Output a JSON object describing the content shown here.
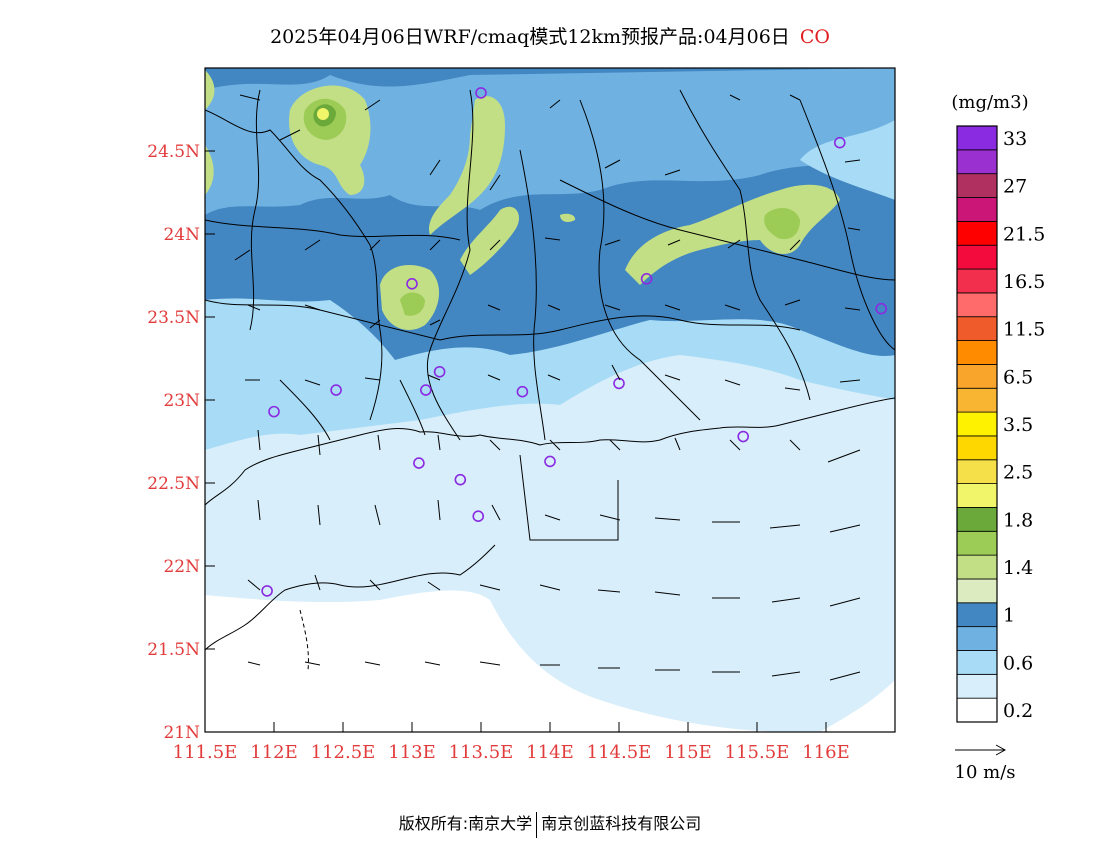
{
  "title": {
    "main": "2025年04月06日WRF/cmaq模式12km预报产品:04月06日",
    "pollutant": "CO"
  },
  "map": {
    "lon_range": [
      111.5,
      116.5
    ],
    "lat_range": [
      21.0,
      25.0
    ],
    "y_ticks": [
      {
        "lat": 24.5,
        "label": "24.5N"
      },
      {
        "lat": 24.0,
        "label": "24N"
      },
      {
        "lat": 23.5,
        "label": "23.5N"
      },
      {
        "lat": 23.0,
        "label": "23N"
      },
      {
        "lat": 22.5,
        "label": "22.5N"
      },
      {
        "lat": 22.0,
        "label": "22N"
      },
      {
        "lat": 21.5,
        "label": "21.5N"
      },
      {
        "lat": 21.0,
        "label": "21N"
      }
    ],
    "x_ticks": [
      {
        "lon": 111.5,
        "label": "111.5E"
      },
      {
        "lon": 112.0,
        "label": "112E"
      },
      {
        "lon": 112.5,
        "label": "112.5E"
      },
      {
        "lon": 113.0,
        "label": "113E"
      },
      {
        "lon": 113.5,
        "label": "113.5E"
      },
      {
        "lon": 114.0,
        "label": "114E"
      },
      {
        "lon": 114.5,
        "label": "114.5E"
      },
      {
        "lon": 115.0,
        "label": "115E"
      },
      {
        "lon": 115.5,
        "label": "115.5E"
      },
      {
        "lon": 116.0,
        "label": "116E"
      }
    ],
    "stations": [
      {
        "lon": 113.5,
        "lat": 24.85
      },
      {
        "lon": 116.1,
        "lat": 24.55
      },
      {
        "lon": 113.0,
        "lat": 23.7
      },
      {
        "lon": 114.7,
        "lat": 23.73
      },
      {
        "lon": 116.4,
        "lat": 23.55
      },
      {
        "lon": 113.2,
        "lat": 23.17
      },
      {
        "lon": 112.45,
        "lat": 23.06
      },
      {
        "lon": 113.1,
        "lat": 23.06
      },
      {
        "lon": 113.8,
        "lat": 23.05
      },
      {
        "lon": 114.5,
        "lat": 23.1
      },
      {
        "lon": 112.0,
        "lat": 22.93
      },
      {
        "lon": 115.4,
        "lat": 22.78
      },
      {
        "lon": 113.05,
        "lat": 22.62
      },
      {
        "lon": 113.35,
        "lat": 22.52
      },
      {
        "lon": 114.0,
        "lat": 22.63
      },
      {
        "lon": 113.48,
        "lat": 22.3
      },
      {
        "lon": 111.95,
        "lat": 21.85
      }
    ],
    "land_outline_color": "#000000",
    "station_color": "#8a2be2"
  },
  "colorbar": {
    "unit": "(mg/m3)",
    "levels": [
      {
        "color": "#ffffff",
        "label": "0.2"
      },
      {
        "color": "#d8eefa",
        "label": ""
      },
      {
        "color": "#a8dcf6",
        "label": "0.6"
      },
      {
        "color": "#6fb2e2",
        "label": ""
      },
      {
        "color": "#4387c2",
        "label": "1"
      },
      {
        "color": "#dcebc0",
        "label": ""
      },
      {
        "color": "#c3df85",
        "label": "1.4"
      },
      {
        "color": "#9ccc55",
        "label": ""
      },
      {
        "color": "#6aa93a",
        "label": "1.8"
      },
      {
        "color": "#f0f56a",
        "label": ""
      },
      {
        "color": "#f6e04a",
        "label": "2.5"
      },
      {
        "color": "#ffd700",
        "label": ""
      },
      {
        "color": "#fff200",
        "label": "3.5"
      },
      {
        "color": "#f7b532",
        "label": ""
      },
      {
        "color": "#f9a52b",
        "label": "6.5"
      },
      {
        "color": "#ff8c00",
        "label": ""
      },
      {
        "color": "#ef5b2a",
        "label": "11.5"
      },
      {
        "color": "#ff6b6b",
        "label": ""
      },
      {
        "color": "#f2304d",
        "label": "16.5"
      },
      {
        "color": "#f20b3c",
        "label": ""
      },
      {
        "color": "#ff0000",
        "label": "21.5"
      },
      {
        "color": "#cc1677",
        "label": ""
      },
      {
        "color": "#b03060",
        "label": "27"
      },
      {
        "color": "#9b30d0",
        "label": ""
      },
      {
        "color": "#8a2be2",
        "label": "33"
      }
    ]
  },
  "wind_legend": {
    "label": "10 m/s"
  },
  "copyright": {
    "left": "版权所有:南京大学",
    "right": "南京创蓝科技有限公司"
  }
}
